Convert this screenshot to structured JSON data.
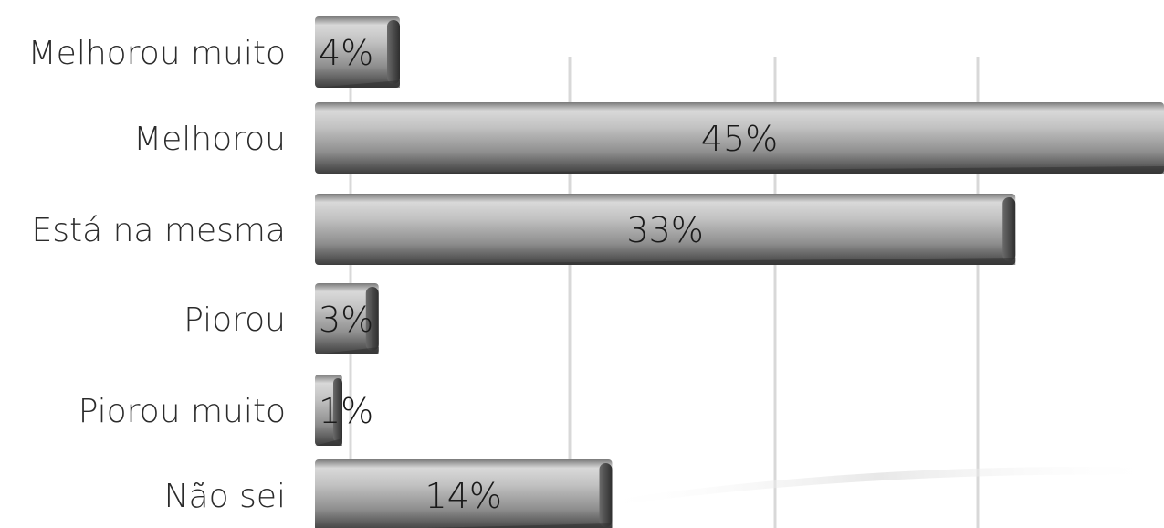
{
  "chart_data": {
    "type": "bar",
    "orientation": "horizontal",
    "categories": [
      "Melhorou muito",
      "Melhorou",
      "Está na mesma",
      "Piorou",
      "Piorou muito",
      "Não sei"
    ],
    "values": [
      4,
      45,
      33,
      3,
      1,
      14
    ],
    "data_labels": [
      "4%",
      "45%",
      "33%",
      "3%",
      "1%",
      "14%"
    ],
    "title": "",
    "xlabel": "",
    "ylabel": "",
    "xlim": [
      0,
      40
    ],
    "grid": "vertical",
    "legend": "none",
    "bar_color": "#9a9a9a",
    "grid_color": "#d8d8d8"
  }
}
